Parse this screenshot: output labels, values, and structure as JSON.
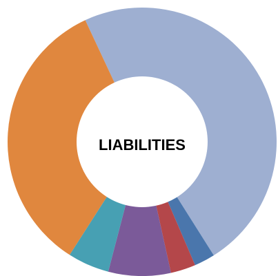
{
  "chart_data": {
    "type": "donut",
    "title": "LIABILITIES",
    "values": [
      48,
      2.5,
      3,
      7.5,
      5,
      34
    ],
    "colors": [
      "#9eafd1",
      "#4a76ac",
      "#b4474a",
      "#7b5a99",
      "#47a0b3",
      "#e0873e"
    ]
  }
}
